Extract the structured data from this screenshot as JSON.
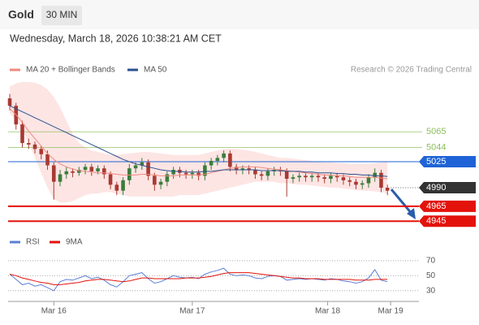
{
  "header": {
    "symbol": "Gold",
    "interval": "30 MIN"
  },
  "timestamp": "Wednesday, March 18, 2026 10:38:21 AM CET",
  "credit": "Research © 2026 Trading Central",
  "chart_data": [
    {
      "type": "candlestick",
      "xlim": [
        0,
        65
      ],
      "ylim": [
        4930,
        5133
      ],
      "up_color": "#3a7d3a",
      "down_color": "#a83a32",
      "open": [
        5110,
        5100,
        5075,
        5050,
        5048,
        5042,
        5035,
        5020,
        4998,
        5008,
        5012,
        5010,
        5014,
        5018,
        5012,
        5016,
        5008,
        4994,
        4986,
        5000,
        5016,
        5020,
        5024,
        5006,
        4994,
        4998,
        5008,
        5014,
        5010,
        5008,
        5010,
        5006,
        5020,
        5026,
        5030,
        5036,
        5018,
        5014,
        5016,
        5014,
        5008,
        5006,
        5012,
        5014,
        5012,
        5002,
        5004,
        5006,
        5004,
        5006,
        5004,
        5002,
        5006,
        5004,
        5000,
        4998,
        4994,
        4996,
        5004,
        5010,
        4990
      ],
      "high": [
        5116,
        5104,
        5080,
        5056,
        5052,
        5046,
        5040,
        5024,
        5014,
        5018,
        5016,
        5018,
        5022,
        5022,
        5020,
        5020,
        5012,
        4998,
        5004,
        5022,
        5024,
        5030,
        5028,
        5010,
        5002,
        5012,
        5018,
        5018,
        5014,
        5014,
        5014,
        5024,
        5030,
        5034,
        5040,
        5040,
        5022,
        5020,
        5020,
        5018,
        5012,
        5016,
        5018,
        5018,
        5016,
        5008,
        5010,
        5010,
        5010,
        5010,
        5008,
        5010,
        5010,
        5008,
        5004,
        5002,
        5000,
        5008,
        5016,
        5014,
        4994
      ],
      "low": [
        5094,
        5068,
        5044,
        5042,
        5036,
        5028,
        5014,
        4974,
        4992,
        5002,
        5004,
        5006,
        5008,
        5006,
        5008,
        5002,
        4988,
        4980,
        4980,
        4994,
        5010,
        5014,
        5000,
        4986,
        4988,
        4992,
        5002,
        5004,
        5002,
        5002,
        5000,
        5000,
        5014,
        5020,
        5024,
        5012,
        5008,
        5008,
        5008,
        5002,
        5000,
        5000,
        5006,
        5006,
        4978,
        4996,
        4998,
        4998,
        4998,
        4998,
        4996,
        4996,
        4998,
        4994,
        4992,
        4988,
        4988,
        4990,
        4998,
        4984,
        4980
      ],
      "close": [
        5100,
        5075,
        5050,
        5048,
        5042,
        5035,
        5020,
        4998,
        5008,
        5012,
        5010,
        5014,
        5018,
        5012,
        5016,
        5008,
        4994,
        4986,
        5000,
        5016,
        5020,
        5024,
        5006,
        4994,
        4998,
        5008,
        5014,
        5010,
        5008,
        5010,
        5006,
        5020,
        5026,
        5030,
        5036,
        5018,
        5014,
        5016,
        5014,
        5008,
        5006,
        5012,
        5014,
        5012,
        5002,
        5004,
        5006,
        5004,
        5006,
        5004,
        5002,
        5006,
        5004,
        5000,
        4998,
        4994,
        4996,
        5004,
        5010,
        4990,
        4986
      ],
      "series": [
        {
          "name": "MA 20 + Bollinger Bands",
          "color": "#f08a80",
          "values": [
            5096,
            5088,
            5078,
            5066,
            5056,
            5046,
            5036,
            5028,
            5022,
            5018,
            5015,
            5013,
            5012,
            5011,
            5010,
            5010,
            5009,
            5008,
            5007,
            5007,
            5007,
            5008,
            5008,
            5007,
            5006,
            5006,
            5006,
            5007,
            5007,
            5007,
            5007,
            5008,
            5010,
            5012,
            5014,
            5016,
            5017,
            5018,
            5018,
            5018,
            5017,
            5016,
            5015,
            5014,
            5013,
            5012,
            5011,
            5010,
            5009,
            5008,
            5007,
            5007,
            5006,
            5006,
            5005,
            5004,
            5004,
            5004,
            5004,
            5003,
            5002
          ]
        },
        {
          "name": "MA 50",
          "color": "#2c5190",
          "values": [
            5100,
            5096,
            5092,
            5088,
            5084,
            5080,
            5076,
            5072,
            5068,
            5064,
            5060,
            5056,
            5052,
            5048,
            5044,
            5040,
            5036,
            5032,
            5028,
            5025,
            5022,
            5020,
            5018,
            5016,
            5014,
            5013,
            5012,
            5012,
            5011,
            5011,
            5011,
            5012,
            5012,
            5013,
            5014,
            5014,
            5014,
            5014,
            5014,
            5014,
            5013,
            5013,
            5013,
            5013,
            5012,
            5012,
            5012,
            5011,
            5011,
            5010,
            5010,
            5010,
            5009,
            5009,
            5008,
            5008,
            5007,
            5007,
            5006,
            5006,
            5005
          ]
        }
      ],
      "bands": {
        "color": "#fde1df",
        "upper": [
          5126,
          5130,
          5132,
          5132,
          5131,
          5128,
          5122,
          5112,
          5098,
          5080,
          5062,
          5050,
          5044,
          5040,
          5038,
          5036,
          5034,
          5034,
          5035,
          5036,
          5037,
          5038,
          5038,
          5037,
          5036,
          5035,
          5034,
          5034,
          5034,
          5034,
          5034,
          5036,
          5038,
          5040,
          5042,
          5042,
          5042,
          5041,
          5040,
          5038,
          5036,
          5034,
          5032,
          5030,
          5030,
          5029,
          5028,
          5027,
          5026,
          5025,
          5024,
          5024,
          5023,
          5023,
          5022,
          5022,
          5022,
          5022,
          5023,
          5024,
          5025
        ],
        "lower": [
          5090,
          5080,
          5068,
          5050,
          5030,
          5010,
          4990,
          4975,
          4970,
          4970,
          4972,
          4976,
          4980,
          4982,
          4982,
          4984,
          4984,
          4982,
          4980,
          4978,
          4978,
          4978,
          4978,
          4978,
          4978,
          4978,
          4978,
          4980,
          4980,
          4980,
          4980,
          4982,
          4984,
          4986,
          4988,
          4990,
          4992,
          4994,
          4996,
          4998,
          4998,
          4998,
          4998,
          4996,
          4996,
          4995,
          4994,
          4994,
          4993,
          4992,
          4991,
          4990,
          4990,
          4989,
          4988,
          4987,
          4986,
          4986,
          4985,
          4984,
          4982
        ]
      },
      "levels": [
        {
          "value": 5065,
          "color": "#8cbf5c",
          "boxed": false,
          "line": "thin"
        },
        {
          "value": 5044,
          "color": "#8cbf5c",
          "boxed": false,
          "line": "thin"
        },
        {
          "value": 5025,
          "color": "#1f63d6",
          "boxed": true,
          "line": "thin"
        },
        {
          "value": 4990,
          "color": "#333333",
          "boxed": true,
          "line": "dotted"
        },
        {
          "value": 4965,
          "color": "#e3120b",
          "boxed": true,
          "line": "thick"
        },
        {
          "value": 4945,
          "color": "#e3120b",
          "boxed": true,
          "line": "thick"
        }
      ]
    },
    {
      "type": "line",
      "xlim": [
        0,
        65
      ],
      "ylim": [
        20,
        85
      ],
      "yticks": [
        70,
        50,
        30
      ],
      "grid": true,
      "xticks": [
        {
          "value": 7,
          "label": "Mar 16"
        },
        {
          "value": 29,
          "label": "Mar 17"
        },
        {
          "value": 50.5,
          "label": "Mar 18"
        },
        {
          "value": 60.5,
          "label": "Mar 19"
        }
      ],
      "series": [
        {
          "name": "RSI",
          "color": "#5b7fd6",
          "values": [
            52,
            45,
            38,
            40,
            36,
            38,
            34,
            30,
            42,
            45,
            44,
            47,
            50,
            46,
            48,
            44,
            38,
            35,
            42,
            50,
            52,
            54,
            46,
            40,
            42,
            46,
            50,
            48,
            47,
            48,
            46,
            52,
            55,
            57,
            60,
            52,
            50,
            51,
            50,
            47,
            46,
            49,
            50,
            49,
            44,
            45,
            46,
            45,
            46,
            45,
            44,
            46,
            45,
            43,
            42,
            40,
            42,
            47,
            58,
            44,
            42
          ]
        },
        {
          "name": "9MA",
          "color": "#e3120b",
          "values": [
            52,
            50,
            47,
            45,
            43,
            41,
            40,
            38,
            38,
            39,
            40,
            41,
            43,
            44,
            45,
            45,
            44,
            43,
            42,
            43,
            45,
            47,
            47,
            46,
            46,
            46,
            46,
            46,
            47,
            47,
            47,
            48,
            49,
            51,
            53,
            54,
            54,
            54,
            54,
            53,
            52,
            51,
            50,
            49,
            48,
            47,
            47,
            46,
            46,
            46,
            45,
            45,
            45,
            45,
            45,
            44,
            44,
            44,
            45,
            45,
            45
          ]
        }
      ]
    }
  ]
}
